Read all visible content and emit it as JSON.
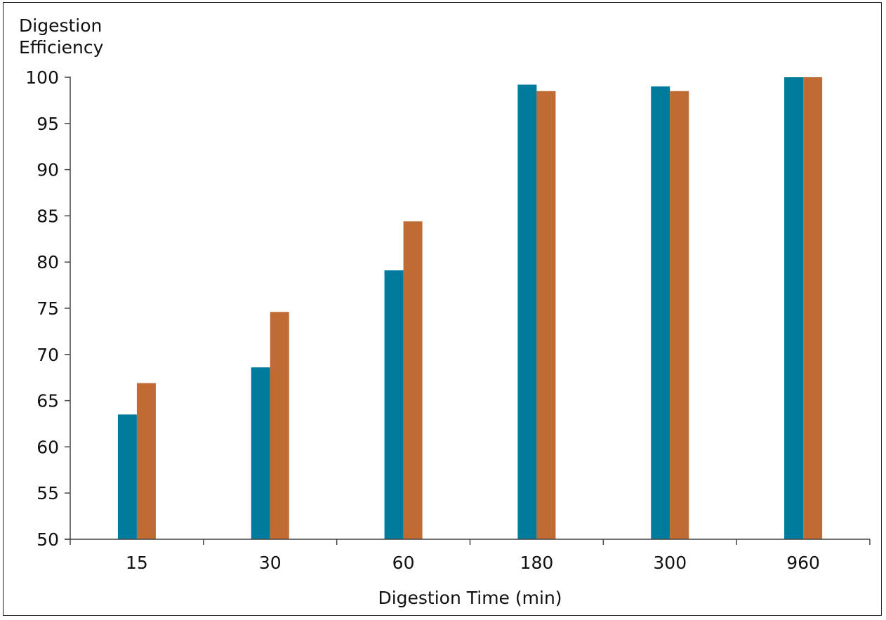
{
  "chart_data": {
    "type": "bar",
    "title": "",
    "xlabel": "Digestion Time (min)",
    "ylabel_lines": [
      "Digestion",
      "Efficiency"
    ],
    "categories": [
      "15",
      "30",
      "60",
      "180",
      "300",
      "960"
    ],
    "ylim": [
      50,
      100
    ],
    "yticks": [
      50,
      55,
      60,
      65,
      70,
      75,
      80,
      85,
      90,
      95,
      100
    ],
    "grid": false,
    "legend": "none",
    "series": [
      {
        "values": [
          63.5,
          68.6,
          79.1,
          99.2,
          99.0,
          100.0
        ],
        "color": "#007b9c"
      },
      {
        "values": [
          66.9,
          74.6,
          84.4,
          98.5,
          98.5,
          100.0
        ],
        "color": "#c06b33"
      }
    ]
  }
}
